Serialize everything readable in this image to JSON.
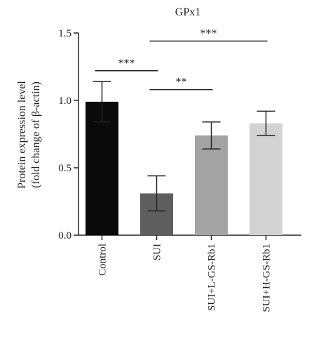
{
  "chart_data": {
    "type": "bar",
    "title": "GPx1",
    "ylabel_line1": "Protein expression level",
    "ylabel_line2": "(fold change of β-actin)",
    "xlabel": "",
    "categories": [
      "Control",
      "SUI",
      "SUI+L-GS-Rb1",
      "SUI+H-GS-Rb1"
    ],
    "values": [
      0.99,
      0.31,
      0.74,
      0.83
    ],
    "errors": [
      0.15,
      0.13,
      0.1,
      0.09
    ],
    "colors": [
      "#0a0a0a",
      "#5f5f5f",
      "#a3a3a3",
      "#d3d3d3"
    ],
    "ylim": [
      0,
      1.5
    ],
    "yticks": [
      0.0,
      0.5,
      1.0,
      1.5
    ],
    "ytick_labels": [
      "0.0",
      "0.5",
      "1.0",
      "1.5"
    ],
    "grid": false,
    "significance": [
      {
        "from": 0,
        "to": 1,
        "label": "***",
        "level": 1.22
      },
      {
        "from": 1,
        "to": 2,
        "label": "**",
        "level": 1.08
      },
      {
        "from": 1,
        "to": 3,
        "label": "***",
        "level": 1.44
      }
    ]
  }
}
